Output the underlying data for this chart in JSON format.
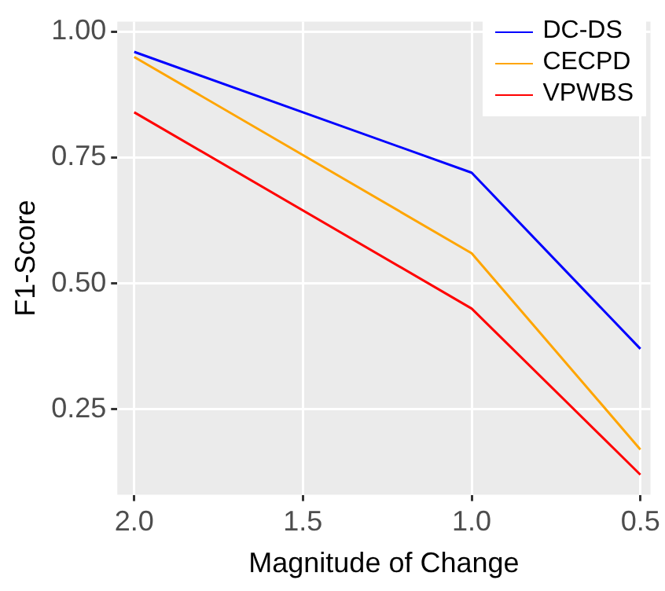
{
  "chart_data": {
    "type": "line",
    "xlabel": "Magnitude of Change",
    "ylabel": "F1-Score",
    "x": [
      2.0,
      1.0,
      0.5
    ],
    "series": [
      {
        "name": "DC-DS",
        "color": "#0000ff",
        "values": [
          0.96,
          0.72,
          0.37
        ]
      },
      {
        "name": "CECPD",
        "color": "#ffa500",
        "values": [
          0.95,
          0.56,
          0.17
        ]
      },
      {
        "name": "VPWBS",
        "color": "#ff0000",
        "values": [
          0.84,
          0.45,
          0.12
        ]
      }
    ],
    "xlim": [
      2.05,
      0.47
    ],
    "xticks": [
      {
        "value": 2,
        "label": "2.0"
      },
      {
        "value": 1.5,
        "label": "1.5"
      },
      {
        "value": 1,
        "label": "1.0"
      },
      {
        "value": 0.5,
        "label": "0.5"
      }
    ],
    "ylim": [
      0.08,
      1.02
    ],
    "yticks": [
      {
        "value": 0.25,
        "label": "0.25"
      },
      {
        "value": 0.5,
        "label": "0.50"
      },
      {
        "value": 0.75,
        "label": "0.75"
      },
      {
        "value": 1,
        "label": "1.00"
      }
    ],
    "grid": true,
    "legend": "top right",
    "marker": "none",
    "line_style": "solid"
  }
}
